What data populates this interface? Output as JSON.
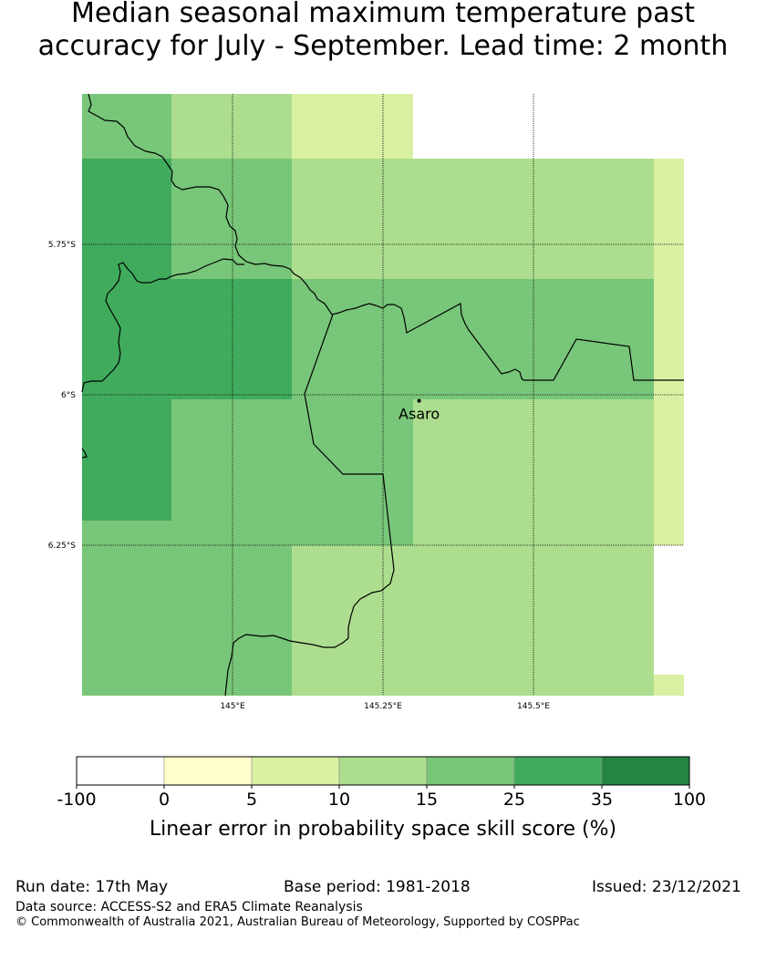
{
  "title": {
    "line1": "Median seasonal maximum temperature past",
    "line2": "accuracy for July - September. Lead time: 2 month"
  },
  "map": {
    "location": {
      "name": "Asaro",
      "lon": 145.31,
      "lat": -6.01
    },
    "lat_labels": [
      "5.75°S",
      "6°S",
      "6.25°S"
    ],
    "lon_labels": [
      "145°E",
      "145.25°E",
      "145.5°E"
    ],
    "lat_lines": [
      -5.75,
      -6.0,
      -6.25
    ],
    "lon_lines": [
      145.0,
      145.25,
      145.5
    ],
    "skill_grid": {
      "description": "skill score category per cell; null = no data",
      "rows": [
        [
          "15",
          "10",
          "10",
          "5",
          "5",
          null,
          null,
          null,
          "5"
        ],
        [
          "25",
          "15",
          "15",
          "10",
          "10",
          "10",
          "10",
          "5",
          "5"
        ],
        [
          "25",
          "15",
          "15",
          "10",
          "10",
          "10",
          "10",
          "5",
          null
        ],
        [
          "25",
          "25",
          "25",
          "15",
          "15",
          "15",
          "15",
          "5",
          null
        ],
        [
          "25",
          "15",
          "15",
          "15",
          "15",
          "10",
          "10",
          "5",
          null
        ],
        [
          "15",
          "15",
          "15",
          "15",
          "15",
          "10",
          "10",
          "5",
          null
        ],
        [
          "15",
          "15",
          "15",
          "10",
          "10",
          "10",
          "10",
          null,
          null
        ],
        [
          "15",
          "15",
          "15",
          "10",
          "10",
          "10",
          "10",
          null,
          null
        ],
        [
          "15",
          "15",
          "15",
          "10",
          "10",
          "10",
          "10",
          "5",
          null
        ]
      ]
    }
  },
  "colorbar": {
    "tick_labels": [
      "-100",
      "0",
      "5",
      "10",
      "15",
      "25",
      "35",
      "100"
    ],
    "colors": [
      "#ffffff",
      "#ffffcc",
      "#d9f0a3",
      "#addd8e",
      "#78c679",
      "#41ab5d",
      "#238443"
    ],
    "label": "Linear error in probability space skill score (%)"
  },
  "footer": {
    "run_date": "Run date: 17th May",
    "base_period": "Base period: 1981-2018",
    "issued": "Issued: 23/12/2021",
    "data_source": "Data source: ACCESS-S2 and ERA5 Climate Reanalysis",
    "copyright": "© Commonwealth of Australia 2021, Australian Bureau of Meteorology, Supported by COSPPac"
  }
}
